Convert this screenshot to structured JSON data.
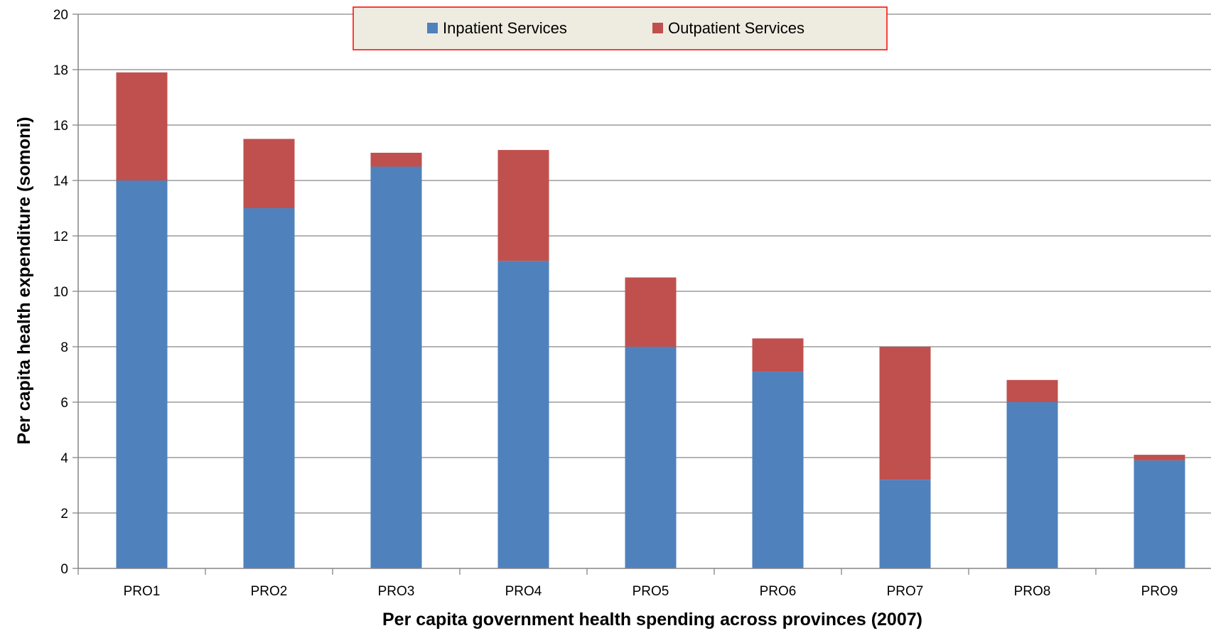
{
  "chart_data": {
    "type": "bar",
    "stacked": true,
    "title": "",
    "xlabel": "Per capita government health spending across provinces (2007)",
    "ylabel": "Per capita health expenditure (somoni)",
    "ylim": [
      0,
      20
    ],
    "yticks": [
      0,
      2,
      4,
      6,
      8,
      10,
      12,
      14,
      16,
      18,
      20
    ],
    "grid": true,
    "legend_position": "top-center",
    "categories": [
      "PRO1",
      "PRO2",
      "PRO3",
      "PRO4",
      "PRO5",
      "PRO6",
      "PRO7",
      "PRO8",
      "PRO9"
    ],
    "series": [
      {
        "name": "Inpatient Services",
        "color": "#4F81BD",
        "values": [
          14.0,
          13.0,
          14.5,
          11.1,
          8.0,
          7.1,
          3.2,
          6.0,
          3.9
        ]
      },
      {
        "name": "Outpatient Services",
        "color": "#C0504D",
        "values": [
          3.9,
          2.5,
          0.5,
          4.0,
          2.5,
          1.2,
          4.8,
          0.8,
          0.2
        ]
      }
    ]
  }
}
